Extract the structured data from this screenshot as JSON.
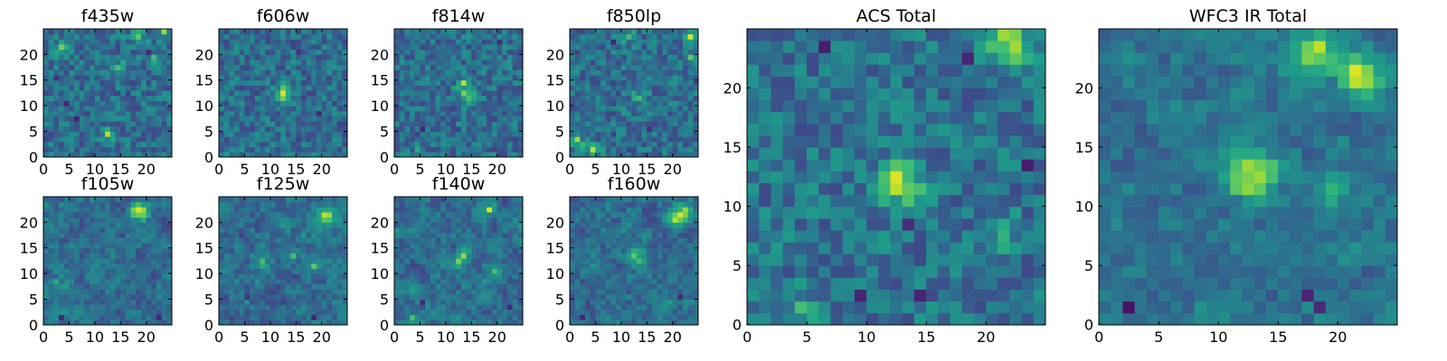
{
  "figure": {
    "title": ""
  },
  "chart_data": [
    {
      "type": "heatmap",
      "title": "f435w",
      "colormap": "viridis",
      "grid": false,
      "x_ticks": [
        0,
        5,
        10,
        15,
        20
      ],
      "y_ticks": [
        0,
        5,
        10,
        15,
        20
      ],
      "xlim": [
        0,
        25
      ],
      "ylim": [
        0,
        25
      ],
      "pixels": 25,
      "bright_pixels": [
        {
          "x": 23,
          "y": 24,
          "value": 0.85
        },
        {
          "x": 3,
          "y": 21,
          "value": 0.8
        },
        {
          "x": 12,
          "y": 4,
          "value": 0.9
        },
        {
          "x": 21,
          "y": 19,
          "value": 0.7
        },
        {
          "x": 18,
          "y": 23,
          "value": 0.75
        },
        {
          "x": 14,
          "y": 17,
          "value": 0.7
        }
      ],
      "dark_pixels": [
        {
          "x": 4,
          "y": 10,
          "value": 0.1
        },
        {
          "x": 20,
          "y": 20,
          "value": 0.12
        },
        {
          "x": 6,
          "y": 7,
          "value": 0.1
        },
        {
          "x": 2,
          "y": 15,
          "value": 0.15
        }
      ]
    },
    {
      "type": "heatmap",
      "title": "f606w",
      "colormap": "viridis",
      "grid": false,
      "x_ticks": [
        0,
        5,
        10,
        15,
        20
      ],
      "y_ticks": [
        0,
        5,
        10,
        15,
        20
      ],
      "xlim": [
        0,
        25
      ],
      "ylim": [
        0,
        25
      ],
      "pixels": 25,
      "bright_pixels": [
        {
          "x": 12,
          "y": 12,
          "value": 0.95
        },
        {
          "x": 12,
          "y": 11,
          "value": 0.8
        },
        {
          "x": 13,
          "y": 12,
          "value": 0.6
        },
        {
          "x": 2,
          "y": 1,
          "value": 0.5
        }
      ],
      "dark_pixels": [
        {
          "x": 19,
          "y": 8,
          "value": 0.1
        },
        {
          "x": 15,
          "y": 20,
          "value": 0.15
        }
      ]
    },
    {
      "type": "heatmap",
      "title": "f814w",
      "colormap": "viridis",
      "grid": false,
      "x_ticks": [
        0,
        5,
        10,
        15,
        20
      ],
      "y_ticks": [
        0,
        5,
        10,
        15,
        20
      ],
      "xlim": [
        0,
        25
      ],
      "ylim": [
        0,
        25
      ],
      "pixels": 25,
      "bright_pixels": [
        {
          "x": 13,
          "y": 14,
          "value": 0.9
        },
        {
          "x": 13,
          "y": 12,
          "value": 0.8
        },
        {
          "x": 14,
          "y": 11,
          "value": 0.7
        },
        {
          "x": 4,
          "y": 1,
          "value": 0.6
        }
      ],
      "dark_pixels": [
        {
          "x": 5,
          "y": 5,
          "value": 0.1
        },
        {
          "x": 20,
          "y": 22,
          "value": 0.12
        }
      ]
    },
    {
      "type": "heatmap",
      "title": "f850lp",
      "colormap": "viridis",
      "grid": false,
      "x_ticks": [
        0,
        5,
        10,
        15,
        20
      ],
      "y_ticks": [
        0,
        5,
        10,
        15,
        20
      ],
      "xlim": [
        0,
        25
      ],
      "ylim": [
        0,
        25
      ],
      "pixels": 25,
      "bright_pixels": [
        {
          "x": 23,
          "y": 23,
          "value": 0.95
        },
        {
          "x": 4,
          "y": 1,
          "value": 0.9
        },
        {
          "x": 1,
          "y": 3,
          "value": 0.85
        },
        {
          "x": 23,
          "y": 19,
          "value": 0.75
        },
        {
          "x": 13,
          "y": 11,
          "value": 0.7
        },
        {
          "x": 11,
          "y": 23,
          "value": 0.7
        }
      ],
      "dark_pixels": [
        {
          "x": 8,
          "y": 22,
          "value": 0.1
        },
        {
          "x": 15,
          "y": 5,
          "value": 0.12
        }
      ]
    },
    {
      "type": "heatmap",
      "title": "f105w",
      "colormap": "viridis",
      "grid": false,
      "x_ticks": [
        0,
        5,
        10,
        15,
        20
      ],
      "y_ticks": [
        0,
        5,
        10,
        15,
        20
      ],
      "xlim": [
        0,
        25
      ],
      "ylim": [
        0,
        25
      ],
      "pixels": 25,
      "bright_pixels": [
        {
          "x": 18,
          "y": 22,
          "value": 0.95
        },
        {
          "x": 19,
          "y": 22,
          "value": 0.85
        },
        {
          "x": 17,
          "y": 21,
          "value": 0.7
        },
        {
          "x": 2,
          "y": 8,
          "value": 0.6
        }
      ],
      "dark_pixels": [
        {
          "x": 3,
          "y": 1,
          "value": 0.1
        },
        {
          "x": 22,
          "y": 1,
          "value": 0.1
        }
      ]
    },
    {
      "type": "heatmap",
      "title": "f125w",
      "colormap": "viridis",
      "grid": false,
      "x_ticks": [
        0,
        5,
        10,
        15,
        20
      ],
      "y_ticks": [
        0,
        5,
        10,
        15,
        20
      ],
      "xlim": [
        0,
        25
      ],
      "ylim": [
        0,
        25
      ],
      "pixels": 25,
      "bright_pixels": [
        {
          "x": 20,
          "y": 21,
          "value": 0.9
        },
        {
          "x": 21,
          "y": 21,
          "value": 0.85
        },
        {
          "x": 18,
          "y": 11,
          "value": 0.75
        },
        {
          "x": 14,
          "y": 13,
          "value": 0.7
        },
        {
          "x": 8,
          "y": 12,
          "value": 0.7
        }
      ],
      "dark_pixels": [
        {
          "x": 18,
          "y": 1,
          "value": 0.1
        },
        {
          "x": 5,
          "y": 5,
          "value": 0.15
        }
      ]
    },
    {
      "type": "heatmap",
      "title": "f140w",
      "colormap": "viridis",
      "grid": false,
      "x_ticks": [
        0,
        5,
        10,
        15,
        20
      ],
      "y_ticks": [
        0,
        5,
        10,
        15,
        20
      ],
      "xlim": [
        0,
        25
      ],
      "ylim": [
        0,
        25
      ],
      "pixels": 25,
      "bright_pixels": [
        {
          "x": 18,
          "y": 22,
          "value": 0.95
        },
        {
          "x": 13,
          "y": 13,
          "value": 0.85
        },
        {
          "x": 12,
          "y": 12,
          "value": 0.8
        },
        {
          "x": 3,
          "y": 1,
          "value": 0.7
        },
        {
          "x": 19,
          "y": 10,
          "value": 0.7
        }
      ],
      "dark_pixels": [
        {
          "x": 5,
          "y": 4,
          "value": 0.1
        },
        {
          "x": 22,
          "y": 3,
          "value": 0.12
        }
      ]
    },
    {
      "type": "heatmap",
      "title": "f160w",
      "colormap": "viridis",
      "grid": false,
      "x_ticks": [
        0,
        5,
        10,
        15,
        20
      ],
      "y_ticks": [
        0,
        5,
        10,
        15,
        20
      ],
      "xlim": [
        0,
        25
      ],
      "ylim": [
        0,
        25
      ],
      "pixels": 25,
      "bright_pixels": [
        {
          "x": 21,
          "y": 21,
          "value": 0.95
        },
        {
          "x": 20,
          "y": 20,
          "value": 0.9
        },
        {
          "x": 22,
          "y": 22,
          "value": 0.85
        },
        {
          "x": 12,
          "y": 13,
          "value": 0.75
        },
        {
          "x": 13,
          "y": 12,
          "value": 0.7
        }
      ],
      "dark_pixels": [
        {
          "x": 2,
          "y": 1,
          "value": 0.1
        },
        {
          "x": 21,
          "y": 5,
          "value": 0.12
        }
      ]
    },
    {
      "type": "heatmap",
      "title": "ACS Total",
      "colormap": "viridis",
      "grid": false,
      "x_ticks": [
        0,
        5,
        10,
        15,
        20
      ],
      "y_ticks": [
        0,
        5,
        10,
        15,
        20
      ],
      "xlim": [
        0,
        25
      ],
      "ylim": [
        0,
        25
      ],
      "pixels": 25,
      "bright_pixels": [
        {
          "x": 12,
          "y": 12,
          "value": 0.95
        },
        {
          "x": 12,
          "y": 11,
          "value": 0.9
        },
        {
          "x": 14,
          "y": 11,
          "value": 0.7
        },
        {
          "x": 21,
          "y": 24,
          "value": 0.85
        },
        {
          "x": 22,
          "y": 24,
          "value": 0.8
        },
        {
          "x": 22,
          "y": 22,
          "value": 0.75
        },
        {
          "x": 21,
          "y": 23,
          "value": 0.7
        },
        {
          "x": 4,
          "y": 1,
          "value": 0.7
        },
        {
          "x": 21,
          "y": 7,
          "value": 0.65
        }
      ],
      "dark_pixels": [
        {
          "x": 6,
          "y": 23,
          "value": 0.08
        },
        {
          "x": 23,
          "y": 13,
          "value": 0.08
        },
        {
          "x": 9,
          "y": 2,
          "value": 0.1
        },
        {
          "x": 14,
          "y": 2,
          "value": 0.1
        },
        {
          "x": 18,
          "y": 22,
          "value": 0.1
        },
        {
          "x": 13,
          "y": 8,
          "value": 0.12
        }
      ]
    },
    {
      "type": "heatmap",
      "title": "WFC3 IR Total",
      "colormap": "viridis",
      "grid": false,
      "x_ticks": [
        0,
        5,
        10,
        15,
        20
      ],
      "y_ticks": [
        0,
        5,
        10,
        15,
        20
      ],
      "xlim": [
        0,
        25
      ],
      "ylim": [
        0,
        25
      ],
      "pixels": 25,
      "bright_pixels": [
        {
          "x": 21,
          "y": 21,
          "value": 0.95
        },
        {
          "x": 21,
          "y": 20,
          "value": 0.9
        },
        {
          "x": 18,
          "y": 23,
          "value": 0.9
        },
        {
          "x": 17,
          "y": 22,
          "value": 0.8
        },
        {
          "x": 12,
          "y": 13,
          "value": 0.85
        },
        {
          "x": 13,
          "y": 12,
          "value": 0.85
        },
        {
          "x": 12,
          "y": 12,
          "value": 0.8
        },
        {
          "x": 11,
          "y": 12,
          "value": 0.75
        },
        {
          "x": 13,
          "y": 11,
          "value": 0.75
        },
        {
          "x": 22,
          "y": 21,
          "value": 0.8
        },
        {
          "x": 19,
          "y": 11,
          "value": 0.65
        }
      ],
      "dark_pixels": [
        {
          "x": 2,
          "y": 1,
          "value": 0.05
        },
        {
          "x": 17,
          "y": 2,
          "value": 0.1
        },
        {
          "x": 18,
          "y": 1,
          "value": 0.12
        }
      ]
    }
  ]
}
